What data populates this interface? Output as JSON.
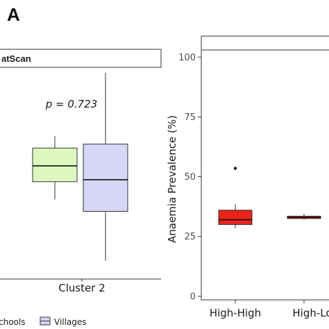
{
  "panel_letter": "A",
  "chart_data": [
    {
      "type": "box",
      "strip_label": "atScan",
      "categories": [
        "Cluster 2"
      ],
      "annotation": "p = 0.723",
      "series": [
        {
          "name": "chools",
          "color": "#dcf7c0",
          "q1": 45,
          "median": 53,
          "q3": 62,
          "whisker_low": 36,
          "whisker_high": 68
        },
        {
          "name": "Villages",
          "color": "#d6d6f7",
          "q1": 30,
          "median": 46,
          "q3": 64,
          "whisker_low": 5,
          "whisker_high": 100
        }
      ],
      "legend": [
        "chools",
        "Villages"
      ]
    },
    {
      "type": "box",
      "ylabel": "Anaemia Prevalence (%)",
      "yticks": [
        0,
        25,
        50,
        75,
        100
      ],
      "ylim": [
        -1.5,
        103
      ],
      "categories": [
        "High-High",
        "High-Lo"
      ],
      "series": [
        {
          "category": "High-High",
          "color": "#e8231c",
          "q1": 30,
          "median": 32,
          "q3": 36,
          "whisker_low": 28.5,
          "whisker_high": 38.5,
          "outliers": [
            53.5
          ]
        },
        {
          "category": "High-Lo",
          "color": "#e8231c",
          "q1": 32.5,
          "median": 33,
          "q3": 33.5,
          "whisker_low": 32,
          "whisker_high": 34.5,
          "outliers": []
        }
      ]
    }
  ]
}
